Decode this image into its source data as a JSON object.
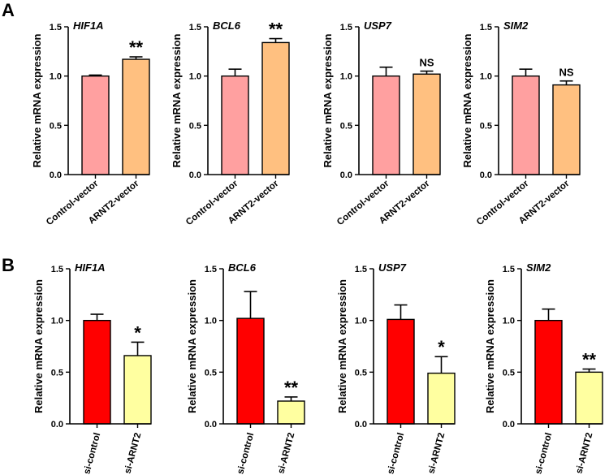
{
  "panel_labels": [
    "A",
    "B"
  ],
  "colors": {
    "control_vector": "#FFA0A0",
    "arnt2_vector": "#FFC080",
    "si_control": "#FF0000",
    "si_arnt2": "#FFFFA0",
    "axis": "#000000"
  },
  "chart_data": [
    {
      "panel": "A",
      "type": "bar",
      "title": "HIF1A",
      "ylabel": "Relative mRNA expression",
      "ylim": [
        0,
        1.5
      ],
      "yticks": [
        "0.0",
        "0.5",
        "1.0",
        "1.5"
      ],
      "categories": [
        "Control-vector",
        "ARNT2-vector"
      ],
      "values": [
        1.0,
        1.17
      ],
      "errors": [
        0.01,
        0.025
      ],
      "significance": "**"
    },
    {
      "panel": "A",
      "type": "bar",
      "title": "BCL6",
      "ylabel": "Relative mRNA expression",
      "ylim": [
        0,
        1.5
      ],
      "yticks": [
        "0.0",
        "0.5",
        "1.0",
        "1.5"
      ],
      "categories": [
        "Control-vector",
        "ARNT2-vector"
      ],
      "values": [
        1.0,
        1.34
      ],
      "errors": [
        0.07,
        0.04
      ],
      "significance": "**"
    },
    {
      "panel": "A",
      "type": "bar",
      "title": "USP7",
      "ylabel": "Relative mRNA expression",
      "ylim": [
        0,
        1.5
      ],
      "yticks": [
        "0.0",
        "0.5",
        "1.0",
        "1.5"
      ],
      "categories": [
        "Control-vector",
        "ARNT2-vector"
      ],
      "values": [
        1.0,
        1.02
      ],
      "errors": [
        0.09,
        0.03
      ],
      "significance": "NS"
    },
    {
      "panel": "A",
      "type": "bar",
      "title": "SIM2",
      "ylabel": "Relative mRNA expression",
      "ylim": [
        0,
        1.5
      ],
      "yticks": [
        "0.0",
        "0.5",
        "1.0",
        "1.5"
      ],
      "categories": [
        "Control-vector",
        "ARNT2-vector"
      ],
      "values": [
        1.0,
        0.91
      ],
      "errors": [
        0.07,
        0.04
      ],
      "significance": "NS"
    },
    {
      "panel": "B",
      "type": "bar",
      "title": "HIF1A",
      "ylabel": "Relative mRNA expression",
      "ylim": [
        0,
        1.5
      ],
      "yticks": [
        "0.0",
        "0.5",
        "1.0",
        "1.5"
      ],
      "categories": [
        "si-control",
        "si-ARNT2"
      ],
      "values": [
        1.0,
        0.66
      ],
      "errors": [
        0.06,
        0.13
      ],
      "significance": "*"
    },
    {
      "panel": "B",
      "type": "bar",
      "title": "BCL6",
      "ylabel": "Relative mRNA expression",
      "ylim": [
        0,
        1.5
      ],
      "yticks": [
        "0.0",
        "0.5",
        "1.0",
        "1.5"
      ],
      "categories": [
        "si-control",
        "si-ARNT2"
      ],
      "values": [
        1.02,
        0.22
      ],
      "errors": [
        0.26,
        0.04
      ],
      "significance": "**"
    },
    {
      "panel": "B",
      "type": "bar",
      "title": "USP7",
      "ylabel": "Relative mRNA expression",
      "ylim": [
        0,
        1.5
      ],
      "yticks": [
        "0.0",
        "0.5",
        "1.0",
        "1.5"
      ],
      "categories": [
        "si-control",
        "si-ARNT2"
      ],
      "values": [
        1.01,
        0.49
      ],
      "errors": [
        0.14,
        0.16
      ],
      "significance": "*"
    },
    {
      "panel": "B",
      "type": "bar",
      "title": "SIM2",
      "ylabel": "Relative mRNA expression",
      "ylim": [
        0,
        1.5
      ],
      "yticks": [
        "0.0",
        "0.5",
        "1.0",
        "1.5"
      ],
      "categories": [
        "si-control",
        "si-ARNT2"
      ],
      "values": [
        1.0,
        0.5
      ],
      "errors": [
        0.11,
        0.03
      ],
      "significance": "**"
    }
  ]
}
